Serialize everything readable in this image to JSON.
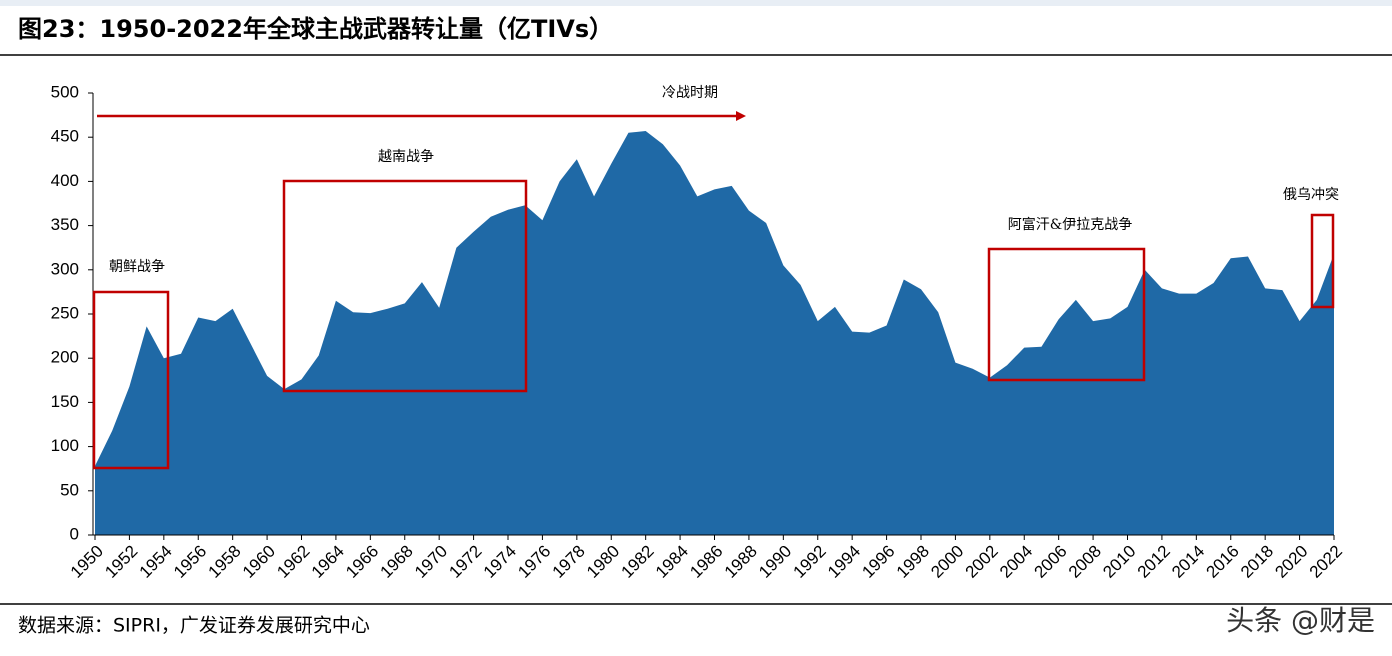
{
  "chart_data": {
    "type": "area",
    "title": "图23：1950-2022年全球主战武器转让量（亿TIVs）",
    "source": "数据来源：SIPRI，广发证券发展研究中心",
    "watermark": "头条 @财是",
    "annotations": [
      "冷战时期",
      "越南战争",
      "朝鲜战争",
      "阿富汗&伊拉克战争",
      "俄乌冲突"
    ],
    "color": "#1f69a6",
    "x": [
      1950,
      1951,
      1952,
      1953,
      1954,
      1955,
      1956,
      1957,
      1958,
      1959,
      1960,
      1961,
      1962,
      1963,
      1964,
      1965,
      1966,
      1967,
      1968,
      1969,
      1970,
      1971,
      1972,
      1973,
      1974,
      1975,
      1976,
      1977,
      1978,
      1979,
      1980,
      1981,
      1982,
      1983,
      1984,
      1985,
      1986,
      1987,
      1988,
      1989,
      1990,
      1991,
      1992,
      1993,
      1994,
      1995,
      1996,
      1997,
      1998,
      1999,
      2000,
      2001,
      2002,
      2003,
      2004,
      2005,
      2006,
      2007,
      2008,
      2009,
      2010,
      2011,
      2012,
      2013,
      2014,
      2015,
      2016,
      2017,
      2018,
      2019,
      2020,
      2021,
      2022
    ],
    "values": [
      78,
      118,
      168,
      236,
      200,
      205,
      246,
      242,
      256,
      218,
      180,
      165,
      176,
      203,
      265,
      252,
      251,
      256,
      262,
      286,
      257,
      325,
      343,
      360,
      368,
      373,
      356,
      400,
      425,
      383,
      420,
      455,
      457,
      442,
      418,
      383,
      391,
      395,
      367,
      353,
      305,
      283,
      242,
      258,
      230,
      229,
      237,
      289,
      278,
      252,
      195,
      188,
      178,
      192,
      212,
      213,
      244,
      266,
      242,
      245,
      258,
      300,
      279,
      273,
      273,
      285,
      313,
      315,
      279,
      277,
      242,
      266,
      318
    ],
    "xlim": [
      1950,
      2022
    ],
    "xticks": [
      1950,
      1952,
      1954,
      1956,
      1958,
      1960,
      1962,
      1964,
      1966,
      1968,
      1970,
      1972,
      1974,
      1976,
      1978,
      1980,
      1982,
      1984,
      1986,
      1988,
      1990,
      1992,
      1994,
      1996,
      1998,
      2000,
      2002,
      2004,
      2006,
      2008,
      2010,
      2012,
      2014,
      2016,
      2018,
      2020,
      2022
    ],
    "ylim": [
      0,
      500
    ],
    "yticks": [
      0,
      50,
      100,
      150,
      200,
      250,
      300,
      350,
      400,
      450,
      500
    ]
  }
}
